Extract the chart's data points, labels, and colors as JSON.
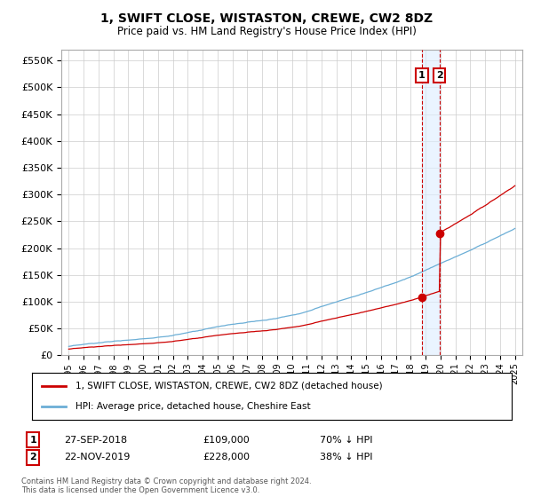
{
  "title": "1, SWIFT CLOSE, WISTASTON, CREWE, CW2 8DZ",
  "subtitle": "Price paid vs. HM Land Registry's House Price Index (HPI)",
  "legend_label1": "1, SWIFT CLOSE, WISTASTON, CREWE, CW2 8DZ (detached house)",
  "legend_label2": "HPI: Average price, detached house, Cheshire East",
  "transaction1_date": "27-SEP-2018",
  "transaction1_price": "£109,000",
  "transaction1_hpi": "70% ↓ HPI",
  "transaction1_year": 2018.75,
  "transaction1_value": 109000,
  "transaction2_date": "22-NOV-2019",
  "transaction2_price": "£228,000",
  "transaction2_hpi": "38% ↓ HPI",
  "transaction2_year": 2019.92,
  "transaction2_value": 228000,
  "hpi_color": "#6baed6",
  "price_color": "#cc0000",
  "vline_color": "#cc0000",
  "shade_color": "#ddeeff",
  "footnote": "Contains HM Land Registry data © Crown copyright and database right 2024.\nThis data is licensed under the Open Government Licence v3.0.",
  "ylim_min": 0,
  "ylim_max": 570000,
  "xmin": 1994.5,
  "xmax": 2025.5
}
